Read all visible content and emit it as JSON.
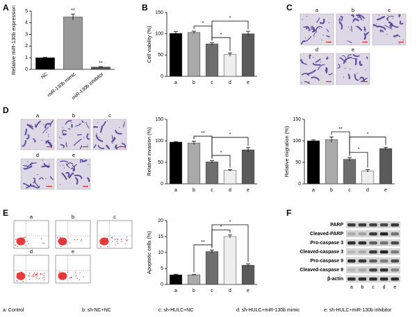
{
  "panel_letters": [
    "A",
    "B",
    "C",
    "D",
    "E",
    "F"
  ],
  "chart_data": [
    {
      "type": "bar",
      "ylabel": "Relative miR-130b expression",
      "categories": [
        "NC",
        "miR-130b mimic",
        "miR-130b inhibitor"
      ],
      "values": [
        1.0,
        4.5,
        0.2
      ],
      "errors": [
        0.03,
        0.25,
        0.03
      ],
      "colors": [
        "#000000",
        "#999999",
        "#555555"
      ],
      "ylim": [
        0,
        5
      ],
      "yticks": [
        0,
        1,
        2,
        3,
        4,
        5
      ],
      "annotations": [
        {
          "text": "**",
          "at": "miR-130b mimic"
        },
        {
          "text": "**",
          "at": "miR-130b inhibitor"
        }
      ]
    },
    {
      "type": "bar",
      "ylabel": "Cell viability (%)",
      "categories": [
        "a",
        "b",
        "c",
        "d",
        "e"
      ],
      "values": [
        101,
        103,
        76,
        51,
        100
      ],
      "errors": [
        4,
        3,
        3,
        4,
        6
      ],
      "colors": [
        "#000000",
        "#aaaaaa",
        "#6e6e6e",
        "#eeeeee",
        "#5a5a5a"
      ],
      "ylim": [
        0,
        150
      ],
      "yticks": [
        0,
        50,
        100,
        150
      ],
      "annotations": [
        {
          "text": "*",
          "pair": [
            "b",
            "c"
          ]
        },
        {
          "text": "*",
          "pair": [
            "c",
            "d"
          ]
        },
        {
          "text": "*",
          "pair": [
            "c",
            "e"
          ]
        }
      ]
    },
    {
      "type": "bar",
      "ylabel": "Relative invasion (%)",
      "categories": [
        "a",
        "b",
        "c",
        "d",
        "e"
      ],
      "values": [
        97,
        95,
        51,
        31,
        79
      ],
      "errors": [
        1,
        4,
        3,
        2,
        5
      ],
      "colors": [
        "#000000",
        "#aaaaaa",
        "#6e6e6e",
        "#eeeeee",
        "#5a5a5a"
      ],
      "ylim": [
        0,
        150
      ],
      "yticks": [
        0,
        50,
        100,
        150
      ],
      "annotations": [
        {
          "text": "**",
          "pair": [
            "b",
            "c"
          ]
        },
        {
          "text": "*",
          "pair": [
            "c",
            "d"
          ]
        },
        {
          "text": "*",
          "pair": [
            "c",
            "e"
          ]
        }
      ]
    },
    {
      "type": "bar",
      "ylabel": "Relative migration (%)",
      "categories": [
        "a",
        "b",
        "c",
        "d",
        "e"
      ],
      "values": [
        100,
        103,
        57,
        30,
        82
      ],
      "errors": [
        2,
        6,
        4,
        3,
        3
      ],
      "colors": [
        "#000000",
        "#aaaaaa",
        "#6e6e6e",
        "#eeeeee",
        "#5a5a5a"
      ],
      "ylim": [
        0,
        150
      ],
      "yticks": [
        0,
        50,
        100,
        150
      ],
      "annotations": [
        {
          "text": "**",
          "pair": [
            "b",
            "c"
          ]
        },
        {
          "text": "*",
          "pair": [
            "c",
            "d"
          ]
        },
        {
          "text": "*",
          "pair": [
            "c",
            "e"
          ]
        }
      ]
    },
    {
      "type": "bar",
      "ylabel": "Apoptotic cells (%)",
      "categories": [
        "a",
        "b",
        "c",
        "d",
        "e"
      ],
      "values": [
        3.0,
        3.0,
        10.3,
        15.0,
        6.0
      ],
      "errors": [
        0.2,
        0.1,
        0.5,
        0.5,
        0.4
      ],
      "colors": [
        "#000000",
        "#aaaaaa",
        "#6e6e6e",
        "#eeeeee",
        "#5a5a5a"
      ],
      "ylim": [
        0,
        20
      ],
      "yticks": [
        0,
        5,
        10,
        15,
        20
      ],
      "annotations": [
        {
          "text": "**",
          "pair": [
            "b",
            "c"
          ]
        },
        {
          "text": "*",
          "pair": [
            "c",
            "d"
          ]
        },
        {
          "text": "*",
          "pair": [
            "c",
            "e"
          ]
        }
      ]
    }
  ],
  "micrographs_C": {
    "labels": [
      "a",
      "b",
      "c",
      "d",
      "e"
    ]
  },
  "micrographs_D": {
    "labels": [
      "a",
      "b",
      "c",
      "d",
      "e"
    ]
  },
  "flow_E": {
    "labels": [
      "a",
      "b",
      "c",
      "d",
      "e"
    ]
  },
  "western_F": {
    "proteins": [
      "PARP",
      "Cleaved-PARP",
      "Pro-caspase 3",
      "Cleaved-caspase 3",
      "Pro-caspase 9",
      "Cleaved-caspase 9",
      "β-actin"
    ],
    "lanes": [
      "a",
      "b",
      "c",
      "d",
      "e"
    ]
  },
  "legend": [
    "a: Control",
    "b: sh-NC+NC",
    "c: sh-HULC+NC",
    "d: sh-HULC+miR-130b mimic",
    "e: sh-HULC+miR-130b inhibitor"
  ]
}
